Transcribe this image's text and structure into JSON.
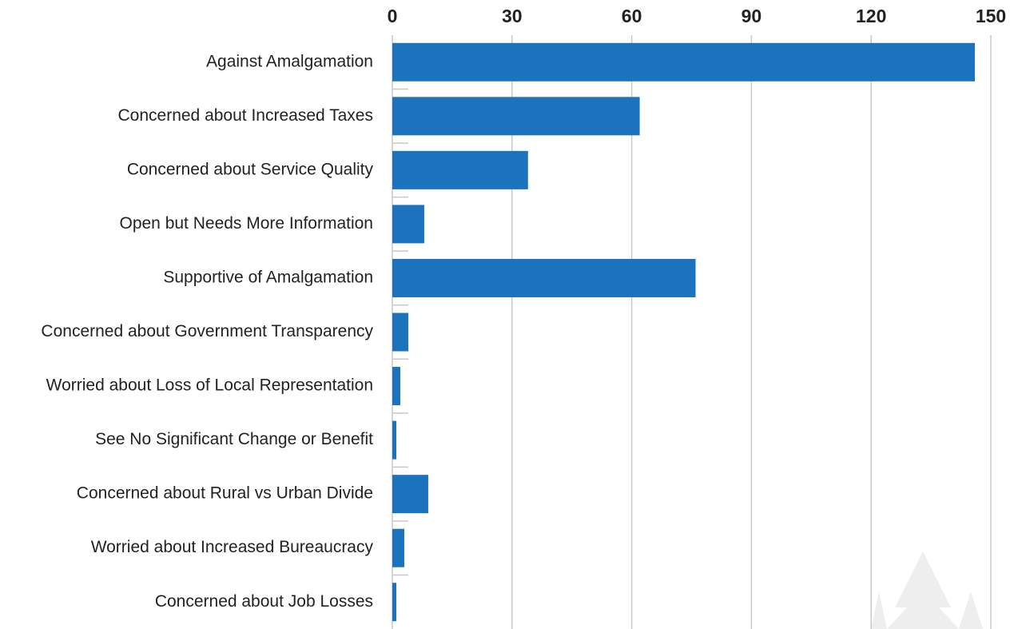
{
  "chart_data": {
    "type": "hbar",
    "categories": [
      "Against Amalgamation",
      "Concerned about Increased Taxes",
      "Concerned about Service Quality",
      "Open but Needs More Information",
      "Supportive of Amalgamation",
      "Concerned about Government Transparency",
      "Worried about Loss of Local Representation",
      "See No Significant Change or Benefit",
      "Concerned about Rural vs Urban Divide",
      "Worried about Increased Bureaucracy",
      "Concerned about Job Losses"
    ],
    "values": [
      146,
      62,
      34,
      8,
      76,
      4,
      2,
      1,
      9,
      3,
      1
    ],
    "color": "#1b73bd",
    "xlim": [
      0,
      150
    ],
    "xticks": [
      0,
      30,
      60,
      90,
      120,
      150
    ],
    "grid": true
  }
}
